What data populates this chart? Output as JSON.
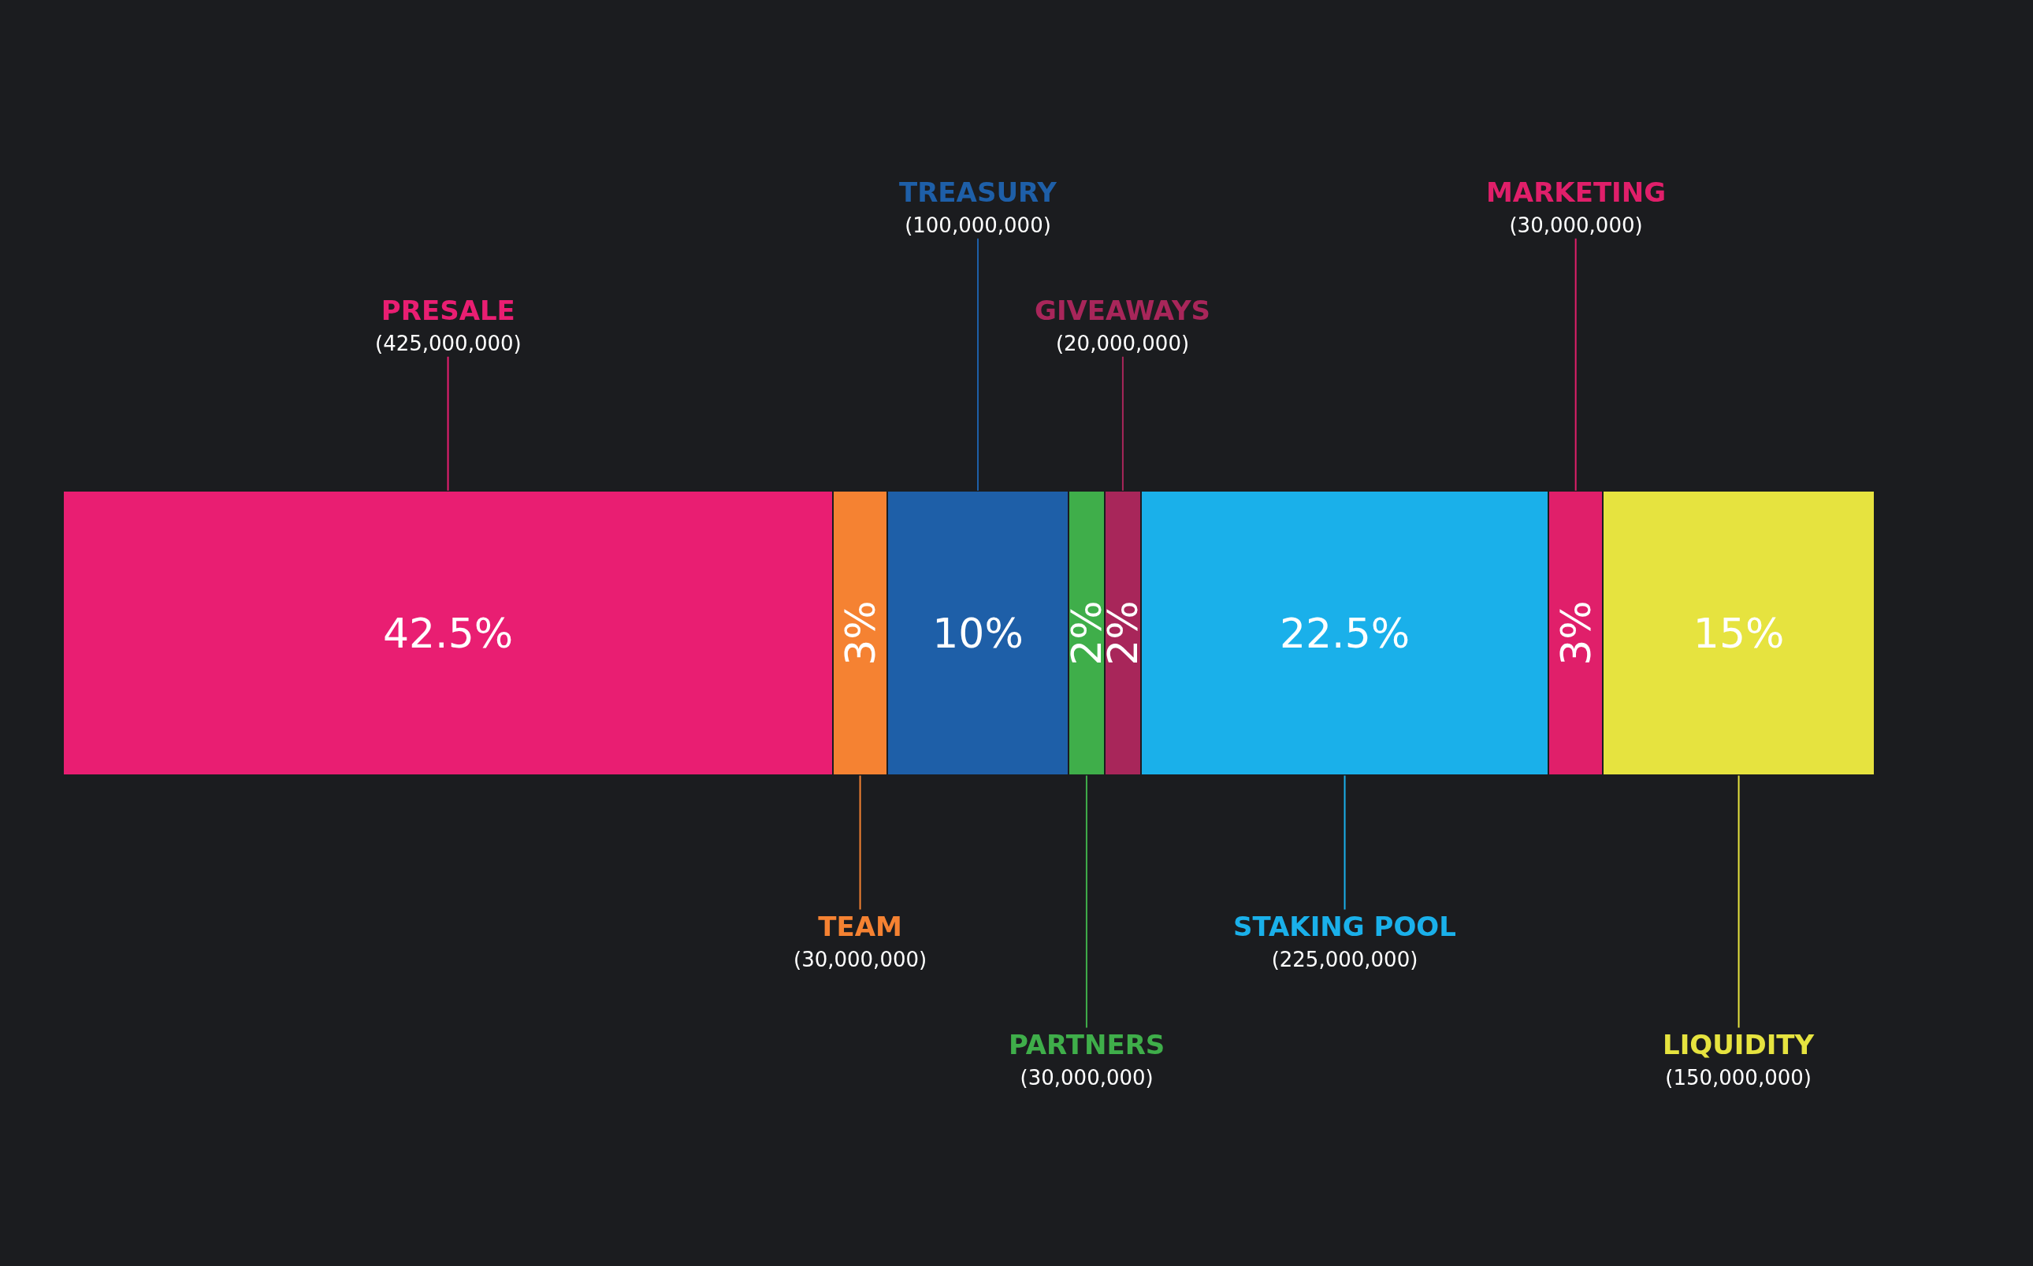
{
  "chart_data": {
    "type": "bar",
    "stacked": true,
    "orientation": "horizontal",
    "categories": [
      null
    ],
    "legend": false,
    "series": [
      {
        "name": "PRESALE",
        "color": "#e91e72",
        "values": [
          42.5
        ],
        "value_labels": [
          "42.5%"
        ]
      },
      {
        "name": "TEAM",
        "color": "#f58232",
        "values": [
          3
        ],
        "value_labels": [
          "3%"
        ]
      },
      {
        "name": "TREASURY",
        "color": "#1e5fa8",
        "values": [
          10
        ],
        "value_labels": [
          "10%"
        ]
      },
      {
        "name": "PARTNERS",
        "color": "#3fae4a",
        "values": [
          2
        ],
        "value_labels": [
          "2%"
        ]
      },
      {
        "name": "GIVEAWAYS",
        "color": "#a8265a",
        "values": [
          2
        ],
        "value_labels": [
          "2%"
        ]
      },
      {
        "name": "STAKING POOL",
        "color": "#1ab0ea",
        "values": [
          22.5
        ],
        "value_labels": [
          "22.5%"
        ]
      },
      {
        "name": "MARKETING",
        "color": "#e01f6a",
        "values": [
          3
        ],
        "value_labels": [
          "3%"
        ]
      },
      {
        "name": "LIQUIDITY",
        "color": "#e6e33f",
        "values": [
          15
        ],
        "value_labels": [
          "15%"
        ]
      }
    ],
    "annotations": [
      "(425,000,000)",
      "(30,000,000)",
      "(100,000,000)",
      "(30,000,000)",
      "(20,000,000)",
      "(225,000,000)",
      "(30,000,000)",
      "(150,000,000)"
    ]
  }
}
